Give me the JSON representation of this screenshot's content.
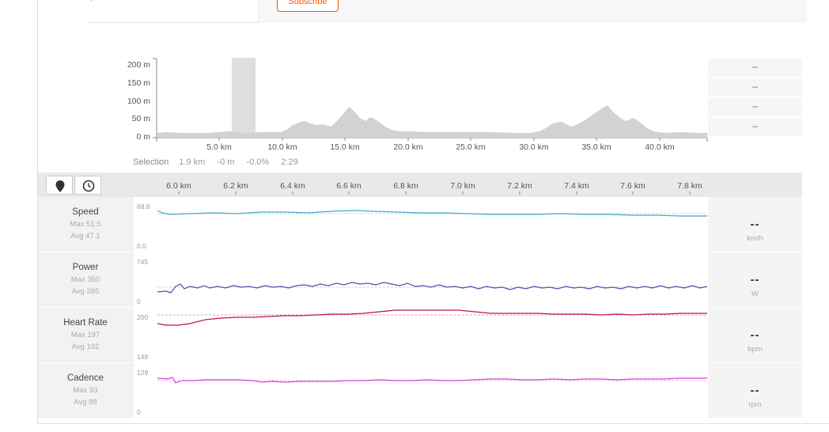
{
  "header": {
    "subscribe_label": "Subscribe"
  },
  "elevation": {
    "y_ticks": [
      "200 m",
      "150 m",
      "100 m",
      "50 m",
      "0 m"
    ],
    "x_ticks": [
      "5.0 km",
      "10.0 km",
      "15.0 km",
      "20.0 km",
      "25.0 km",
      "30.0 km",
      "35.0 km",
      "40.0 km"
    ],
    "right_values": [
      "--",
      "--",
      "--",
      "--"
    ],
    "selection": {
      "label": "Selection",
      "distance": "1.9 km",
      "elevation": "-0 m",
      "grade": "-0.0%",
      "time": "2:29"
    }
  },
  "toolbar": {
    "marker_icon": "map-marker-icon",
    "clock_icon": "clock-icon",
    "distance_ticks": [
      "6.0 km",
      "6.2 km",
      "6.4 km",
      "6.6 km",
      "6.8 km",
      "7.0 km",
      "7.2 km",
      "7.4 km",
      "7.6 km",
      "7.8 km"
    ]
  },
  "streams": [
    {
      "name": "Speed",
      "max": "Max 51.5",
      "avg": "Avg 47.1",
      "axis_top": "68.8",
      "axis_bottom": "0.0",
      "value": "--",
      "unit": "km/h",
      "color": "#3fa9c9"
    },
    {
      "name": "Power",
      "max": "Max 350",
      "avg": "Avg 285",
      "axis_top": "745",
      "axis_bottom": "0",
      "value": "--",
      "unit": "W",
      "color": "#6b3fb3"
    },
    {
      "name": "Heart Rate",
      "max": "Max 197",
      "avg": "Avg 192",
      "axis_top": "200",
      "axis_bottom": "149",
      "value": "--",
      "unit": "bpm",
      "color": "#c0143c"
    },
    {
      "name": "Cadence",
      "max": "Max 93",
      "avg": "Avg 88",
      "axis_top": "129",
      "axis_bottom": "0",
      "value": "--",
      "unit": "rpm",
      "color": "#d63fd6"
    }
  ]
}
